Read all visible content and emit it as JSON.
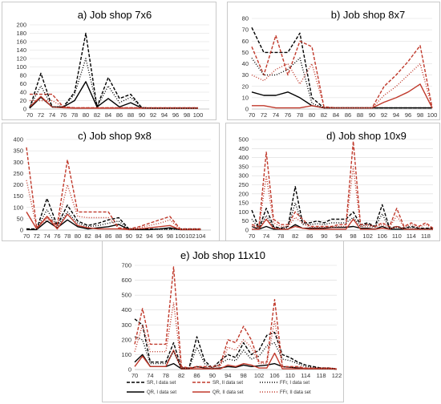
{
  "colors": {
    "black": "#000000",
    "red": "#c0392b",
    "grid": "#d9d9d9"
  },
  "chart_data": [
    {
      "type": "line",
      "title": "a) Job shop 7x6",
      "ylim": [
        0,
        200
      ],
      "yticks": [
        0,
        20,
        40,
        60,
        80,
        100,
        120,
        140,
        160,
        180,
        200
      ],
      "xlim": [
        70,
        102
      ],
      "xticks": [
        70,
        72,
        74,
        76,
        78,
        80,
        82,
        84,
        86,
        88,
        90,
        92,
        94,
        96,
        98,
        100
      ],
      "x": [
        70,
        72,
        74,
        76,
        78,
        80,
        82,
        84,
        86,
        88,
        90,
        92,
        94,
        96,
        98,
        100
      ],
      "series": [
        {
          "name": "SR, I data set",
          "color": "black",
          "dash": "4,2",
          "values": [
            2,
            85,
            5,
            5,
            40,
            180,
            5,
            75,
            25,
            35,
            3,
            2,
            2,
            2,
            2,
            2
          ]
        },
        {
          "name": "QR, I data set",
          "color": "black",
          "dash": "",
          "values": [
            2,
            28,
            5,
            5,
            20,
            65,
            5,
            25,
            5,
            15,
            2,
            2,
            2,
            2,
            2,
            2
          ]
        },
        {
          "name": "SR, II data set",
          "color": "red",
          "dash": "4,2",
          "values": [
            35,
            35,
            35,
            5,
            3,
            3,
            3,
            3,
            3,
            3,
            3,
            3,
            3,
            3,
            3,
            3
          ]
        },
        {
          "name": "QR, II data set",
          "color": "red",
          "dash": "",
          "values": [
            5,
            30,
            5,
            3,
            2,
            2,
            2,
            2,
            2,
            2,
            2,
            2,
            2,
            2,
            2,
            2
          ]
        },
        {
          "name": "FFr, I data set",
          "color": "black",
          "dash": "1,2",
          "values": [
            5,
            55,
            5,
            5,
            35,
            120,
            5,
            55,
            15,
            28,
            3,
            2,
            2,
            2,
            2,
            2
          ]
        },
        {
          "name": "FFr, II data set",
          "color": "red",
          "dash": "1,2",
          "values": [
            20,
            20,
            20,
            5,
            3,
            3,
            3,
            3,
            3,
            3,
            3,
            3,
            3,
            3,
            3,
            3
          ]
        }
      ]
    },
    {
      "type": "line",
      "title": "b) Job shop 8x7",
      "ylim": [
        0,
        80
      ],
      "yticks": [
        0,
        10,
        20,
        30,
        40,
        50,
        60,
        70,
        80
      ],
      "xlim": [
        70,
        100
      ],
      "xticks": [
        70,
        72,
        74,
        76,
        78,
        80,
        82,
        84,
        86,
        88,
        90,
        92,
        94,
        96,
        98,
        100
      ],
      "x": [
        70,
        72,
        74,
        76,
        78,
        80,
        82,
        84,
        86,
        88,
        90,
        92,
        94,
        96,
        98,
        100
      ],
      "series": [
        {
          "name": "SR, I data set",
          "color": "black",
          "dash": "4,2",
          "values": [
            72,
            50,
            50,
            50,
            67,
            10,
            1,
            1,
            1,
            1,
            1,
            1,
            1,
            1,
            1,
            1
          ]
        },
        {
          "name": "QR, I data set",
          "color": "black",
          "dash": "",
          "values": [
            15,
            12,
            12,
            15,
            10,
            3,
            1,
            1,
            1,
            1,
            1,
            1,
            1,
            1,
            1,
            1
          ]
        },
        {
          "name": "SR, II data set",
          "color": "red",
          "dash": "4,2",
          "values": [
            55,
            30,
            65,
            30,
            60,
            55,
            2,
            1,
            1,
            1,
            1,
            20,
            30,
            42,
            56,
            1
          ]
        },
        {
          "name": "QR, II data set",
          "color": "red",
          "dash": "",
          "values": [
            3,
            3,
            1,
            1,
            1,
            3,
            1,
            1,
            1,
            1,
            1,
            6,
            10,
            15,
            22,
            1
          ]
        },
        {
          "name": "FFr, I data set",
          "color": "black",
          "dash": "1,2",
          "values": [
            45,
            30,
            30,
            35,
            45,
            5,
            1,
            1,
            1,
            1,
            1,
            1,
            1,
            1,
            1,
            1
          ]
        },
        {
          "name": "FFr, II data set",
          "color": "red",
          "dash": "1,2",
          "values": [
            30,
            25,
            35,
            40,
            22,
            40,
            2,
            1,
            1,
            1,
            1,
            12,
            20,
            30,
            40,
            1
          ]
        }
      ]
    },
    {
      "type": "line",
      "title": "c) Job shop 9x8",
      "ylim": [
        0,
        400
      ],
      "yticks": [
        0,
        50,
        100,
        150,
        200,
        250,
        300,
        350,
        400
      ],
      "xlim": [
        70,
        106
      ],
      "xticks": [
        70,
        72,
        74,
        76,
        78,
        80,
        82,
        84,
        86,
        88,
        90,
        92,
        94,
        96,
        98,
        100,
        102,
        104
      ],
      "x": [
        70,
        72,
        74,
        76,
        78,
        80,
        82,
        84,
        86,
        88,
        90,
        92,
        94,
        96,
        98,
        100,
        102,
        104
      ],
      "series": [
        {
          "name": "SR, I data set",
          "color": "black",
          "dash": "4,2",
          "values": [
            5,
            5,
            140,
            20,
            110,
            40,
            20,
            30,
            45,
            55,
            5,
            5,
            5,
            5,
            5,
            5,
            5,
            5
          ]
        },
        {
          "name": "QR, I data set",
          "color": "black",
          "dash": "",
          "values": [
            2,
            2,
            40,
            10,
            45,
            15,
            5,
            10,
            15,
            25,
            2,
            2,
            2,
            5,
            10,
            2,
            2,
            2
          ]
        },
        {
          "name": "SR, II data set",
          "color": "red",
          "dash": "4,2",
          "values": [
            365,
            10,
            60,
            20,
            310,
            80,
            80,
            80,
            80,
            10,
            5,
            15,
            30,
            45,
            60,
            5,
            5,
            5
          ]
        },
        {
          "name": "QR, II data set",
          "color": "red",
          "dash": "",
          "values": [
            80,
            5,
            60,
            5,
            70,
            20,
            10,
            5,
            5,
            5,
            2,
            5,
            10,
            15,
            20,
            2,
            2,
            2
          ]
        },
        {
          "name": "FFr, I data set",
          "color": "black",
          "dash": "1,2",
          "values": [
            5,
            5,
            90,
            15,
            80,
            30,
            15,
            20,
            30,
            40,
            3,
            3,
            3,
            3,
            3,
            3,
            3,
            3
          ]
        },
        {
          "name": "FFr, II data set",
          "color": "red",
          "dash": "1,2",
          "values": [
            220,
            8,
            50,
            15,
            200,
            60,
            55,
            55,
            55,
            8,
            4,
            10,
            20,
            30,
            45,
            4,
            4,
            4
          ]
        }
      ]
    },
    {
      "type": "line",
      "title": "d) Job shop 10x9",
      "ylim": [
        0,
        500
      ],
      "yticks": [
        0,
        50,
        100,
        150,
        200,
        250,
        300,
        350,
        400,
        450,
        500
      ],
      "xlim": [
        70,
        120
      ],
      "xticks": [
        70,
        74,
        78,
        82,
        86,
        90,
        94,
        98,
        102,
        106,
        110,
        114,
        118
      ],
      "x": [
        70,
        72,
        74,
        76,
        78,
        80,
        82,
        84,
        86,
        88,
        90,
        92,
        94,
        96,
        98,
        100,
        102,
        104,
        106,
        108,
        110,
        112,
        114,
        116,
        118,
        120
      ],
      "series": [
        {
          "name": "SR, I data set",
          "color": "black",
          "dash": "4,2",
          "values": [
            110,
            10,
            120,
            20,
            10,
            20,
            240,
            40,
            40,
            50,
            40,
            60,
            60,
            60,
            100,
            30,
            40,
            20,
            140,
            10,
            20,
            10,
            20,
            10,
            10,
            10
          ]
        },
        {
          "name": "QR, I data set",
          "color": "black",
          "dash": "",
          "values": [
            20,
            5,
            20,
            5,
            5,
            5,
            30,
            10,
            10,
            10,
            10,
            15,
            15,
            15,
            20,
            10,
            10,
            5,
            20,
            5,
            5,
            5,
            5,
            5,
            5,
            5
          ]
        },
        {
          "name": "SR, II data set",
          "color": "red",
          "dash": "4,2",
          "values": [
            30,
            20,
            430,
            60,
            30,
            30,
            100,
            60,
            20,
            20,
            20,
            20,
            30,
            30,
            490,
            30,
            30,
            20,
            40,
            20,
            120,
            20,
            40,
            20,
            40,
            10
          ]
        },
        {
          "name": "QR, II data set",
          "color": "red",
          "dash": "",
          "values": [
            5,
            5,
            60,
            10,
            5,
            5,
            20,
            10,
            5,
            5,
            5,
            5,
            5,
            5,
            60,
            5,
            5,
            5,
            10,
            5,
            20,
            5,
            5,
            5,
            5,
            5
          ]
        },
        {
          "name": "FFr, I data set",
          "color": "black",
          "dash": "1,2",
          "values": [
            60,
            10,
            80,
            15,
            8,
            15,
            150,
            30,
            30,
            35,
            30,
            40,
            40,
            40,
            70,
            20,
            30,
            15,
            90,
            8,
            15,
            8,
            15,
            8,
            8,
            8
          ]
        },
        {
          "name": "FFr, II data set",
          "color": "red",
          "dash": "1,2",
          "values": [
            20,
            15,
            300,
            40,
            20,
            20,
            70,
            40,
            15,
            15,
            15,
            15,
            20,
            20,
            350,
            20,
            20,
            15,
            30,
            15,
            80,
            15,
            30,
            15,
            30,
            8
          ]
        }
      ]
    },
    {
      "type": "line",
      "title": "e) Job shop 11x10",
      "ylim": [
        0,
        700
      ],
      "yticks": [
        0,
        100,
        200,
        300,
        400,
        500,
        600,
        700
      ],
      "xlim": [
        70,
        122
      ],
      "xticks": [
        70,
        74,
        78,
        82,
        86,
        90,
        94,
        98,
        102,
        106,
        110,
        114,
        118,
        122
      ],
      "x": [
        70,
        72,
        74,
        76,
        78,
        80,
        82,
        84,
        86,
        88,
        90,
        92,
        94,
        96,
        98,
        100,
        102,
        104,
        106,
        108,
        110,
        112,
        114,
        116,
        118,
        120,
        122
      ],
      "series": [
        {
          "name": "SR, I data set",
          "color": "black",
          "dash": "4,2",
          "values": [
            340,
            300,
            50,
            50,
            50,
            180,
            10,
            10,
            220,
            60,
            10,
            60,
            100,
            80,
            180,
            100,
            130,
            230,
            250,
            100,
            80,
            50,
            30,
            20,
            10,
            10,
            5
          ]
        },
        {
          "name": "QR, I data set",
          "color": "black",
          "dash": "",
          "values": [
            50,
            100,
            20,
            20,
            20,
            40,
            5,
            5,
            20,
            10,
            5,
            10,
            20,
            15,
            30,
            20,
            25,
            30,
            40,
            20,
            15,
            10,
            5,
            5,
            5,
            5,
            2
          ]
        },
        {
          "name": "SR, II data set",
          "color": "red",
          "dash": "4,2",
          "values": [
            170,
            410,
            170,
            170,
            170,
            690,
            20,
            10,
            20,
            20,
            20,
            30,
            200,
            180,
            290,
            200,
            50,
            50,
            470,
            20,
            20,
            20,
            10,
            10,
            10,
            10,
            5
          ]
        },
        {
          "name": "QR, II data set",
          "color": "red",
          "dash": "",
          "values": [
            20,
            90,
            20,
            20,
            20,
            130,
            5,
            5,
            5,
            5,
            5,
            5,
            30,
            20,
            40,
            30,
            10,
            10,
            110,
            5,
            5,
            5,
            5,
            5,
            5,
            5,
            2
          ]
        },
        {
          "name": "FFr, I data set",
          "color": "black",
          "dash": "1,2",
          "values": [
            220,
            200,
            40,
            40,
            40,
            120,
            8,
            8,
            150,
            40,
            8,
            40,
            70,
            60,
            130,
            70,
            90,
            160,
            180,
            70,
            60,
            40,
            20,
            15,
            8,
            8,
            4
          ]
        },
        {
          "name": "FFr, II data set",
          "color": "red",
          "dash": "1,2",
          "values": [
            120,
            300,
            120,
            120,
            120,
            450,
            15,
            8,
            15,
            15,
            15,
            20,
            150,
            130,
            200,
            150,
            40,
            40,
            330,
            15,
            15,
            15,
            8,
            8,
            8,
            8,
            4
          ]
        }
      ]
    }
  ],
  "legend": {
    "items": [
      {
        "label": "SR, I data set",
        "color": "black",
        "dash": "4,2"
      },
      {
        "label": "QR, I data set",
        "color": "black",
        "dash": ""
      },
      {
        "label": "SR, II data set",
        "color": "red",
        "dash": "4,2"
      },
      {
        "label": "QR, II data set",
        "color": "red",
        "dash": ""
      },
      {
        "label": "FFr, I data set",
        "color": "black",
        "dash": "1,2"
      },
      {
        "label": "FFr, II data set",
        "color": "red",
        "dash": "1,2"
      }
    ]
  }
}
